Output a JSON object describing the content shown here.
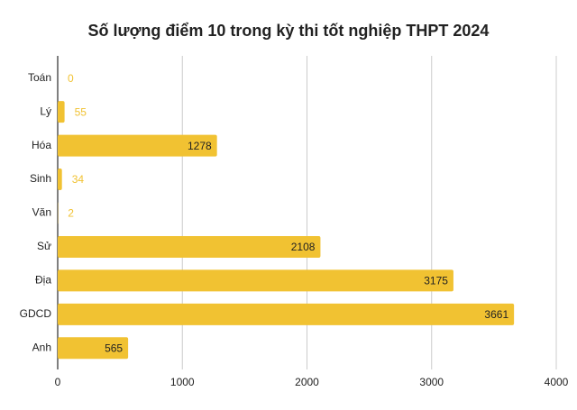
{
  "chart_data": {
    "type": "bar",
    "orientation": "horizontal",
    "title": "Số lượng điểm 10 trong kỳ thi tốt nghiệp THPT 2024",
    "categories": [
      "Toán",
      "Lý",
      "Hóa",
      "Sinh",
      "Văn",
      "Sử",
      "Địa",
      "GDCD",
      "Anh"
    ],
    "values": [
      0,
      55,
      1278,
      34,
      2,
      2108,
      3175,
      3661,
      565
    ],
    "color": "#f1c232",
    "xlim": [
      0,
      4000
    ],
    "xticks": [
      0,
      1000,
      2000,
      3000,
      4000
    ],
    "grid": true
  }
}
